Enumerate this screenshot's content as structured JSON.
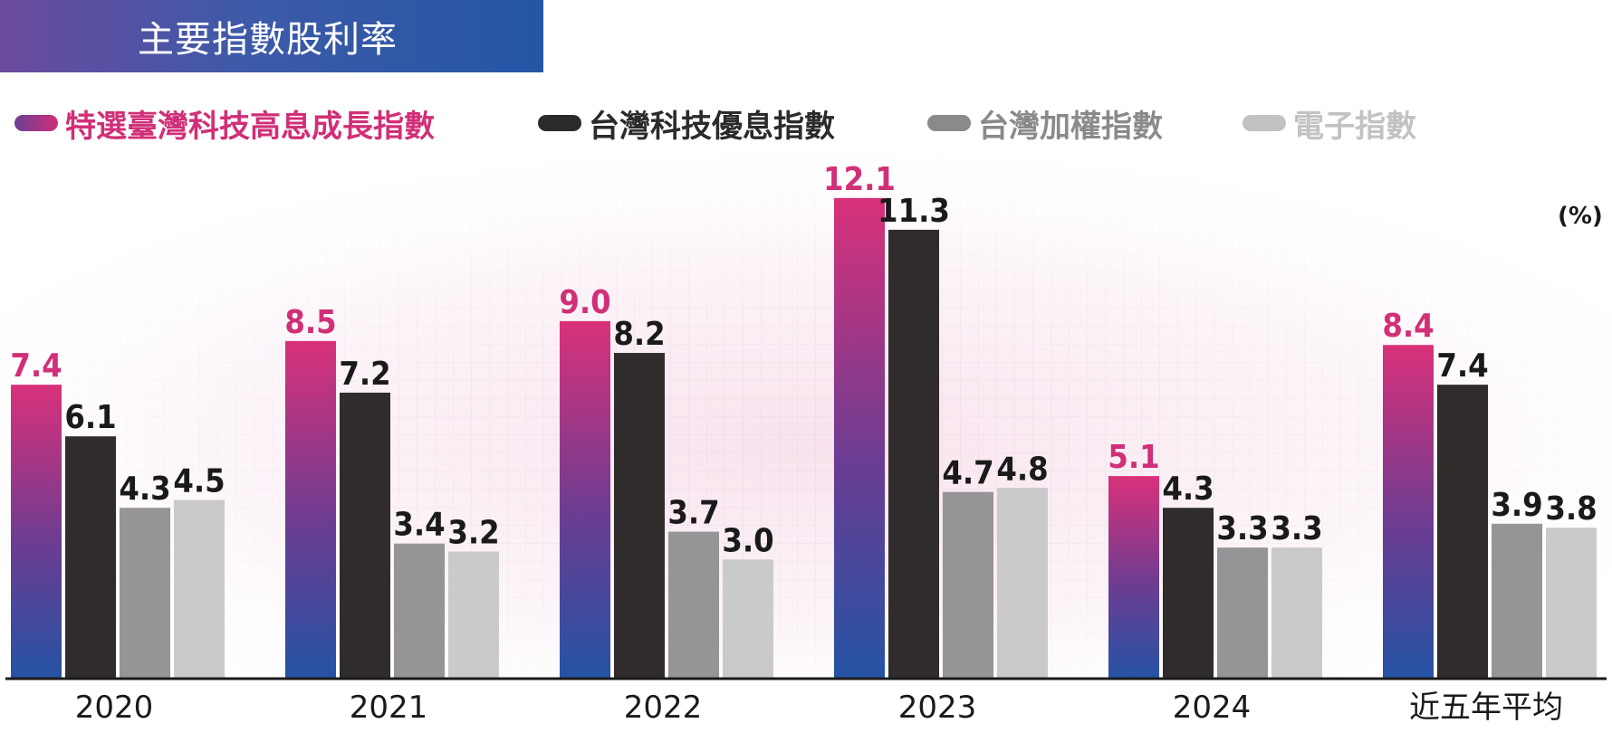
{
  "title": "主要指數股利率",
  "unit_label": "(%)",
  "colors": {
    "banner_start": "#6b4a9e",
    "banner_end": "#2456a6",
    "series_1_top": "#d9317a",
    "series_1_bottom": "#2553a5",
    "series_2": "#302c2c",
    "series_3": "#959496",
    "series_4": "#cacacc"
  },
  "chart_data": {
    "type": "bar",
    "categories": [
      "2020",
      "2021",
      "2022",
      "2023",
      "2024",
      "近五年平均"
    ],
    "series": [
      {
        "name": "特選臺灣科技高息成長指數",
        "values": [
          7.4,
          8.5,
          9.0,
          12.1,
          5.1,
          8.4
        ],
        "labels": [
          "7.4",
          "8.5",
          "9.0",
          "12.1",
          "5.1",
          "8.4"
        ],
        "label_color": "#d12f78",
        "legend_color": "#d12f78"
      },
      {
        "name": "台灣科技優息指數",
        "values": [
          6.1,
          7.2,
          8.2,
          11.3,
          4.3,
          7.4
        ],
        "labels": [
          "6.1",
          "7.2",
          "8.2",
          "11.3",
          "4.3",
          "7.4"
        ],
        "label_color": "#1a1a1a",
        "legend_color": "#2b2b2b"
      },
      {
        "name": "台灣加權指數",
        "values": [
          4.3,
          3.4,
          3.7,
          4.7,
          3.3,
          3.9
        ],
        "labels": [
          "4.3",
          "3.4",
          "3.7",
          "4.7",
          "3.3",
          "3.9"
        ],
        "label_color": "#1a1a1a",
        "legend_color": "#8a8a8c"
      },
      {
        "name": "電子指數",
        "values": [
          4.5,
          3.2,
          3.0,
          4.8,
          3.3,
          3.8
        ],
        "labels": [
          "4.5",
          "3.2",
          "3.0",
          "4.8",
          "3.3",
          "3.8"
        ],
        "label_color": "#1a1a1a",
        "legend_color": "#c2c2c4"
      }
    ],
    "ylim": [
      0,
      13
    ],
    "grid": true,
    "legend_position": "top"
  }
}
